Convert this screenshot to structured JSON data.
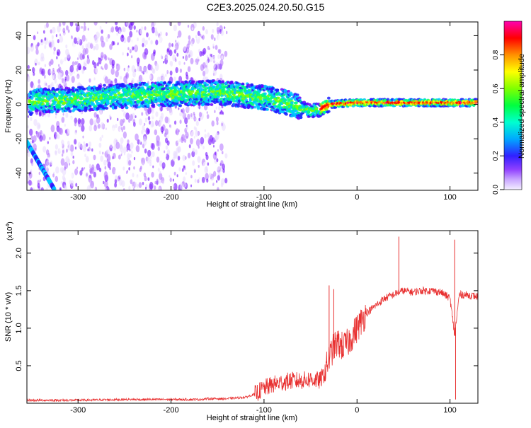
{
  "figure": {
    "title": "C2E3.2025.024.20.50.G15"
  },
  "chart_data": [
    {
      "type": "heatmap",
      "title": "C2E3.2025.024.20.50.G15",
      "xlabel": "Height of straight line (km)",
      "ylabel": "Frequency (Hz)",
      "xlim": [
        -355,
        130
      ],
      "ylim": [
        -50,
        48
      ],
      "xticks": [
        -300,
        -200,
        -100,
        0,
        100
      ],
      "xtick_labels": [
        "-300",
        "-200",
        "-100",
        "0",
        "100"
      ],
      "yticks": [
        -40,
        -20,
        0,
        20,
        40
      ],
      "ytick_labels": [
        "-40",
        "-20",
        "0",
        "20",
        "40"
      ],
      "colorbar": {
        "label": "Normalized spectral amplitude",
        "range": [
          0.0,
          1.0
        ],
        "ticks": [
          0.0,
          0.2,
          0.4,
          0.6,
          0.8
        ],
        "tick_labels": [
          "0.0",
          "0.2",
          "0.4",
          "0.6",
          "0.8"
        ]
      },
      "colormap": [
        "#ffffff",
        "#e8d8ff",
        "#b070ff",
        "#6a00ff",
        "#2020ff",
        "#00c8ff",
        "#00ff80",
        "#80ff00",
        "#ffff00",
        "#ff8000",
        "#ff0000",
        "#ff00a0"
      ],
      "ridge": {
        "x": [
          -350,
          -300,
          -250,
          -200,
          -150,
          -100,
          -75,
          -50,
          -40,
          -30,
          0,
          30,
          60,
          90,
          100,
          130
        ],
        "y": [
          2,
          3,
          5,
          6,
          7,
          4,
          1,
          -4,
          -3,
          0,
          1,
          1,
          1,
          1,
          1,
          1
        ]
      }
    },
    {
      "type": "line",
      "xlabel": "Height of straight line (km)",
      "ylabel": "SNR (10 * v/v)",
      "y_multiplier": "(x10",
      "y_exponent": "4",
      "y_multiplier_close": ")",
      "xlim": [
        -355,
        130
      ],
      "ylim": [
        0,
        2.3
      ],
      "xticks": [
        -300,
        -200,
        -100,
        0,
        100
      ],
      "xtick_labels": [
        "-300",
        "-200",
        "-100",
        "0",
        "100"
      ],
      "yticks": [
        0.5,
        1.0,
        1.5,
        2.0
      ],
      "ytick_labels": [
        "0.5",
        "1.0",
        "1.5",
        "2.0"
      ],
      "color": "#e83030",
      "series": [
        {
          "x": [
            -355,
            -300,
            -250,
            -200,
            -170,
            -160,
            -140,
            -120,
            -110,
            -100,
            -90,
            -80,
            -70,
            -60,
            -50,
            -40,
            -35,
            -30,
            -25,
            -20,
            -15,
            -10,
            -5,
            0,
            10,
            20,
            30,
            40,
            45,
            50,
            60,
            70,
            80,
            90,
            100,
            105,
            110,
            120,
            130
          ],
          "y": [
            0.04,
            0.04,
            0.05,
            0.05,
            0.05,
            0.06,
            0.06,
            0.08,
            0.12,
            0.2,
            0.25,
            0.28,
            0.3,
            0.3,
            0.32,
            0.3,
            0.4,
            0.6,
            0.75,
            0.8,
            0.75,
            0.8,
            0.9,
            1.0,
            1.2,
            1.3,
            1.4,
            1.45,
            1.48,
            1.5,
            1.48,
            1.5,
            1.5,
            1.48,
            1.4,
            0.9,
            1.45,
            1.44,
            1.42
          ]
        }
      ],
      "spikes": [
        {
          "x": -30,
          "y": 1.57
        },
        {
          "x": -25,
          "y": 1.52
        },
        {
          "x": 45,
          "y": 2.22
        },
        {
          "x": 105,
          "y": 2.18
        },
        {
          "x": 106,
          "y": 0.05
        }
      ]
    }
  ]
}
